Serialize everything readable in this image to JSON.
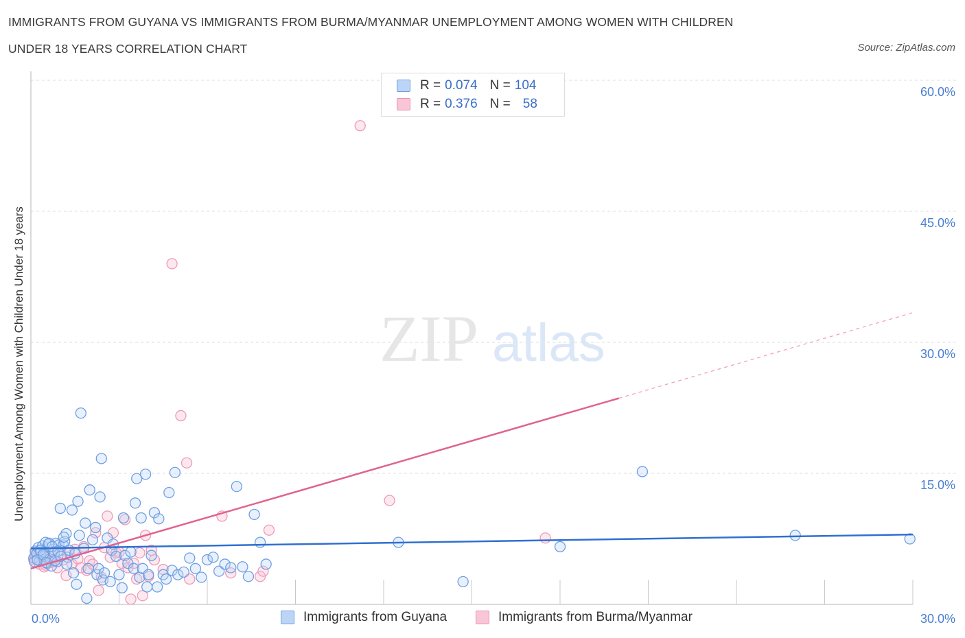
{
  "title_line1": "IMMIGRANTS FROM GUYANA VS IMMIGRANTS FROM BURMA/MYANMAR UNEMPLOYMENT AMONG WOMEN WITH CHILDREN",
  "title_line2": "UNDER 18 YEARS CORRELATION CHART",
  "source": "Source: ZipAtlas.com",
  "watermark": {
    "zip": "ZIP",
    "atlas": "atlas"
  },
  "colors": {
    "blue": "#4a86d9",
    "pink": "#e8769f",
    "blue_line": "#2f6fd0",
    "pink_line": "#e0628f"
  },
  "legend_top": [
    {
      "r_label": "R =",
      "r_value": "0.074",
      "n_label": "N =",
      "n_value": "104"
    },
    {
      "r_label": "R =",
      "r_value": "0.376",
      "n_label": "N =",
      "n_value": "58"
    }
  ],
  "legend_bottom": [
    "Immigrants from Guyana",
    "Immigrants from Burma/Myanmar"
  ],
  "chart_data": {
    "type": "scatter",
    "title": "Immigrants from Guyana vs Immigrants from Burma/Myanmar Unemployment Among Women with Children Under 18 years Correlation Chart",
    "xlabel": "",
    "ylabel": "Unemployment Among Women with Children Under 18 years",
    "xlim": [
      0,
      30
    ],
    "ylim": [
      0,
      60
    ],
    "x_tick_labels": [
      "0.0%",
      "30.0%"
    ],
    "y_ticks": [
      15,
      30,
      45,
      60
    ],
    "y_tick_labels": [
      "15.0%",
      "30.0%",
      "45.0%",
      "60.0%"
    ],
    "series": [
      {
        "name": "Immigrants from Guyana",
        "R": 0.074,
        "N": 104,
        "trend": {
          "x0": 0,
          "y0": 6.4,
          "x1": 30,
          "y1": 8.0
        },
        "points": [
          [
            0.1,
            5.3
          ],
          [
            0.15,
            6.1
          ],
          [
            0.2,
            5.8
          ],
          [
            0.25,
            6.5
          ],
          [
            0.3,
            5.0
          ],
          [
            0.35,
            6.0
          ],
          [
            0.4,
            6.7
          ],
          [
            0.45,
            5.5
          ],
          [
            0.5,
            7.1
          ],
          [
            0.55,
            4.7
          ],
          [
            0.6,
            6.9
          ],
          [
            0.65,
            5.2
          ],
          [
            0.7,
            4.4
          ],
          [
            0.75,
            6.3
          ],
          [
            0.8,
            5.9
          ],
          [
            0.85,
            7.0
          ],
          [
            0.9,
            4.9
          ],
          [
            0.95,
            6.8
          ],
          [
            1.0,
            11.0
          ],
          [
            1.1,
            6.8
          ],
          [
            1.15,
            7.2
          ],
          [
            1.2,
            8.1
          ],
          [
            1.25,
            5.4
          ],
          [
            1.3,
            6.2
          ],
          [
            1.4,
            10.8
          ],
          [
            1.45,
            3.6
          ],
          [
            1.5,
            5.8
          ],
          [
            1.55,
            2.3
          ],
          [
            1.6,
            11.8
          ],
          [
            1.65,
            7.9
          ],
          [
            1.7,
            21.9
          ],
          [
            1.8,
            6.4
          ],
          [
            1.85,
            9.3
          ],
          [
            1.9,
            0.7
          ],
          [
            1.95,
            4.1
          ],
          [
            2.0,
            13.1
          ],
          [
            2.1,
            7.4
          ],
          [
            2.2,
            8.8
          ],
          [
            2.25,
            3.4
          ],
          [
            2.3,
            4.1
          ],
          [
            2.35,
            12.3
          ],
          [
            2.4,
            16.7
          ],
          [
            2.45,
            2.8
          ],
          [
            2.5,
            3.6
          ],
          [
            2.6,
            7.6
          ],
          [
            2.7,
            2.6
          ],
          [
            2.75,
            6.2
          ],
          [
            2.8,
            6.9
          ],
          [
            2.9,
            5.5
          ],
          [
            3.0,
            3.4
          ],
          [
            3.1,
            1.9
          ],
          [
            3.15,
            9.9
          ],
          [
            3.2,
            5.6
          ],
          [
            3.3,
            4.7
          ],
          [
            3.4,
            6.0
          ],
          [
            3.5,
            4.1
          ],
          [
            3.55,
            11.6
          ],
          [
            3.6,
            14.4
          ],
          [
            3.7,
            3.1
          ],
          [
            3.75,
            9.9
          ],
          [
            3.8,
            4.1
          ],
          [
            3.9,
            14.9
          ],
          [
            3.95,
            2.0
          ],
          [
            4.0,
            3.4
          ],
          [
            4.1,
            5.6
          ],
          [
            4.2,
            10.5
          ],
          [
            4.3,
            2.0
          ],
          [
            4.35,
            9.8
          ],
          [
            4.5,
            3.4
          ],
          [
            4.6,
            2.9
          ],
          [
            4.7,
            12.8
          ],
          [
            4.8,
            3.9
          ],
          [
            4.9,
            15.1
          ],
          [
            5.0,
            3.4
          ],
          [
            5.2,
            3.7
          ],
          [
            5.4,
            5.3
          ],
          [
            5.6,
            4.1
          ],
          [
            5.8,
            3.1
          ],
          [
            6.0,
            5.1
          ],
          [
            6.2,
            5.4
          ],
          [
            6.4,
            3.8
          ],
          [
            6.6,
            4.6
          ],
          [
            6.8,
            4.2
          ],
          [
            7.0,
            13.5
          ],
          [
            7.2,
            4.3
          ],
          [
            7.4,
            3.2
          ],
          [
            7.6,
            10.3
          ],
          [
            7.8,
            7.1
          ],
          [
            8.0,
            4.6
          ],
          [
            12.5,
            7.1
          ],
          [
            14.7,
            2.6
          ],
          [
            18.0,
            6.6
          ],
          [
            20.8,
            15.2
          ],
          [
            26.0,
            7.9
          ],
          [
            29.9,
            7.5
          ],
          [
            0.12,
            4.9
          ],
          [
            0.22,
            5.1
          ],
          [
            0.32,
            6.2
          ],
          [
            0.42,
            5.7
          ],
          [
            0.52,
            4.8
          ],
          [
            0.62,
            7.0
          ],
          [
            0.72,
            6.6
          ],
          [
            0.82,
            5.0
          ],
          [
            0.92,
            6.1
          ],
          [
            1.02,
            5.5
          ],
          [
            1.12,
            7.7
          ],
          [
            1.22,
            4.6
          ]
        ]
      },
      {
        "name": "Immigrants from Burma/Myanmar",
        "R": 0.376,
        "N": 58,
        "trend": {
          "x0": 0,
          "y0": 4.1,
          "x1": 20.0,
          "y1": 23.6,
          "dash_x1": 30,
          "dash_y1": 33.4
        },
        "points": [
          [
            0.1,
            5.1
          ],
          [
            0.2,
            6.0
          ],
          [
            0.3,
            4.6
          ],
          [
            0.4,
            5.4
          ],
          [
            0.5,
            4.5
          ],
          [
            0.6,
            5.1
          ],
          [
            0.7,
            4.8
          ],
          [
            0.8,
            5.6
          ],
          [
            0.9,
            4.2
          ],
          [
            1.0,
            6.2
          ],
          [
            1.1,
            5.1
          ],
          [
            1.2,
            3.3
          ],
          [
            1.3,
            5.9
          ],
          [
            1.4,
            4.6
          ],
          [
            1.5,
            6.3
          ],
          [
            1.6,
            5.2
          ],
          [
            1.7,
            4.2
          ],
          [
            1.8,
            6.6
          ],
          [
            1.9,
            3.9
          ],
          [
            2.0,
            5.0
          ],
          [
            2.1,
            4.6
          ],
          [
            2.2,
            8.2
          ],
          [
            2.3,
            1.6
          ],
          [
            2.4,
            3.1
          ],
          [
            2.5,
            6.5
          ],
          [
            2.6,
            10.1
          ],
          [
            2.7,
            5.4
          ],
          [
            2.8,
            8.2
          ],
          [
            2.9,
            5.9
          ],
          [
            3.0,
            6.0
          ],
          [
            3.1,
            4.7
          ],
          [
            3.2,
            9.7
          ],
          [
            3.3,
            4.2
          ],
          [
            3.4,
            0.6
          ],
          [
            3.5,
            4.7
          ],
          [
            3.6,
            2.9
          ],
          [
            3.7,
            5.9
          ],
          [
            3.8,
            1.0
          ],
          [
            3.9,
            7.9
          ],
          [
            4.0,
            3.2
          ],
          [
            4.1,
            6.2
          ],
          [
            4.2,
            5.1
          ],
          [
            4.5,
            4.0
          ],
          [
            4.8,
            39.0
          ],
          [
            5.1,
            21.6
          ],
          [
            5.3,
            16.2
          ],
          [
            5.4,
            2.9
          ],
          [
            6.5,
            10.1
          ],
          [
            6.8,
            3.6
          ],
          [
            7.8,
            3.2
          ],
          [
            7.9,
            3.8
          ],
          [
            8.1,
            8.5
          ],
          [
            11.2,
            54.8
          ],
          [
            12.2,
            11.9
          ],
          [
            17.5,
            7.6
          ],
          [
            0.15,
            5.6
          ],
          [
            0.45,
            4.3
          ],
          [
            0.75,
            5.0
          ]
        ]
      }
    ]
  }
}
